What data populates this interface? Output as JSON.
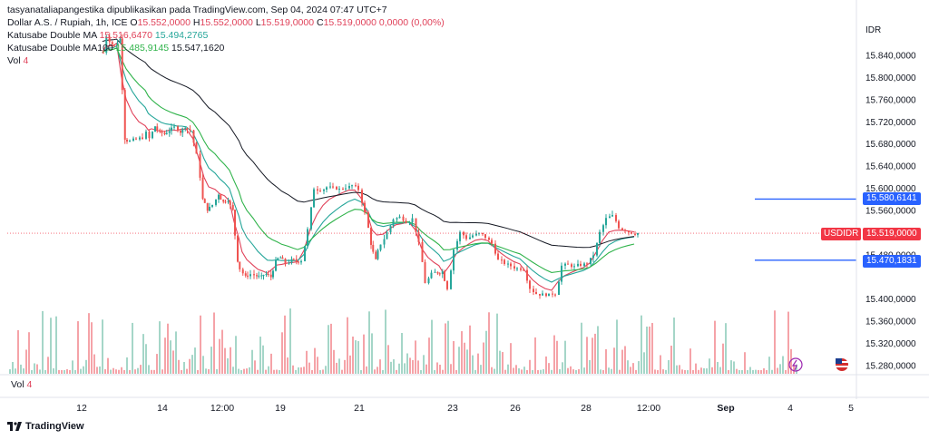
{
  "header": {
    "author_line": "tasyanataliapangestika dipublikasikan pada TradingView.com, Sep 04, 2024 07:47 UTC+7",
    "symbol_desc": "Dollar A.S. / Rupiah, 1h, ICE",
    "ohlc": {
      "o_label": "O",
      "o_value": "15.552,0000",
      "h_label": "H",
      "h_value": "15.552,0000",
      "l_label": "L",
      "l_value": "15.519,0000",
      "c_label": "C",
      "c_value": "15.519,0000",
      "change": "0,0000 (0,00%)"
    },
    "ma_double": {
      "label": "Katusabe Double MA",
      "v1": "15.516,6470",
      "v2": "15.494,2765"
    },
    "ma100": {
      "label": "Katusabe Double MA100",
      "v1": "15.485,9145",
      "v2": "15.547,1620"
    },
    "vol": {
      "label": "Vol",
      "value": "4"
    }
  },
  "vol_pane": {
    "label": "Vol",
    "value": "4"
  },
  "brand": {
    "name": "TradingView"
  },
  "price_axis": {
    "currency": "IDR",
    "ticks": [
      "15.840,0000",
      "15.800,0000",
      "15.760,0000",
      "15.720,0000",
      "15.680,0000",
      "15.640,0000",
      "15.600,0000",
      "15.560,0000",
      "15.480,0000",
      "15.400,0000",
      "15.360,0000",
      "15.320,0000",
      "15.280,0000"
    ],
    "tag_upper": "15.580,6141",
    "tag_last": "15.519,0000",
    "tag_lower": "15.470,1831",
    "symbol_tag": "USDIDR"
  },
  "time_axis": {
    "labels": [
      "12",
      "14",
      "12:00",
      "19",
      "21",
      "23",
      "26",
      "28",
      "12:00",
      "Sep",
      "4",
      "5"
    ]
  },
  "colors": {
    "up": "#26a69a",
    "down": "#ef5350",
    "ma_fast": "#e0425a",
    "ma_slow": "#26a69a",
    "ma100_fast": "#2fb34a",
    "ma100_slow": "#131722",
    "line_blue": "#2962ff",
    "vol_up": "#a5d6c8",
    "vol_down": "#f5a3a8"
  },
  "chart_data": {
    "type": "candlestick",
    "interval": "1h",
    "y_ticks": [
      15840,
      15800,
      15760,
      15720,
      15680,
      15640,
      15600,
      15560,
      15480,
      15400,
      15360,
      15320,
      15280
    ],
    "x_labels": [
      "12",
      "14",
      "12:00",
      "19",
      "21",
      "23",
      "26",
      "28",
      "12:00",
      "Sep",
      "4",
      "5"
    ],
    "horizontal_lines": [
      15580.6141,
      15470.1831
    ],
    "last_price": 15519,
    "price_path": [
      [
        0.13,
        15845
      ],
      [
        0.15,
        15875
      ],
      [
        0.17,
        15860
      ],
      [
        0.2,
        15858
      ],
      [
        0.22,
        15870
      ],
      [
        0.25,
        15690
      ],
      [
        0.28,
        15685
      ],
      [
        0.32,
        15688
      ],
      [
        0.36,
        15692
      ],
      [
        0.4,
        15700
      ],
      [
        0.42,
        15690
      ],
      [
        0.44,
        15712
      ],
      [
        0.47,
        15700
      ],
      [
        0.5,
        15698
      ],
      [
        0.53,
        15705
      ],
      [
        0.56,
        15710
      ],
      [
        0.6,
        15702
      ],
      [
        0.63,
        15712
      ],
      [
        0.66,
        15705
      ],
      [
        0.7,
        15660
      ],
      [
        0.74,
        15580
      ],
      [
        0.77,
        15562
      ],
      [
        0.8,
        15570
      ],
      [
        0.84,
        15590
      ],
      [
        0.87,
        15575
      ],
      [
        0.9,
        15580
      ],
      [
        0.93,
        15560
      ],
      [
        0.96,
        15470
      ],
      [
        0.99,
        15455
      ],
      [
        1.01,
        15440
      ],
      [
        1.04,
        15445
      ],
      [
        1.08,
        15442
      ],
      [
        1.11,
        15440
      ],
      [
        1.14,
        15445
      ],
      [
        1.17,
        15440
      ],
      [
        1.2,
        15468
      ],
      [
        1.23,
        15475
      ],
      [
        1.26,
        15465
      ],
      [
        1.3,
        15470
      ],
      [
        1.33,
        15468
      ],
      [
        1.36,
        15470
      ],
      [
        1.4,
        15525
      ],
      [
        1.44,
        15600
      ],
      [
        1.48,
        15598
      ],
      [
        1.52,
        15602
      ],
      [
        1.56,
        15600
      ],
      [
        1.6,
        15598
      ],
      [
        1.64,
        15602
      ],
      [
        1.68,
        15605
      ],
      [
        1.72,
        15598
      ],
      [
        1.76,
        15555
      ],
      [
        1.8,
        15500
      ],
      [
        1.83,
        15470
      ],
      [
        1.86,
        15500
      ],
      [
        1.9,
        15520
      ],
      [
        1.94,
        15545
      ],
      [
        1.98,
        15548
      ],
      [
        2.02,
        15540
      ],
      [
        2.06,
        15545
      ],
      [
        2.1,
        15500
      ],
      [
        2.14,
        15430
      ],
      [
        2.18,
        15445
      ],
      [
        2.22,
        15448
      ],
      [
        2.25,
        15450
      ],
      [
        2.28,
        15420
      ],
      [
        2.32,
        15490
      ],
      [
        2.36,
        15520
      ],
      [
        2.4,
        15510
      ],
      [
        2.44,
        15515
      ],
      [
        2.48,
        15518
      ],
      [
        2.52,
        15512
      ],
      [
        2.56,
        15500
      ],
      [
        2.6,
        15470
      ],
      [
        2.64,
        15465
      ],
      [
        2.68,
        15460
      ],
      [
        2.72,
        15455
      ],
      [
        2.76,
        15455
      ],
      [
        2.8,
        15420
      ],
      [
        2.84,
        15410
      ],
      [
        2.88,
        15408
      ],
      [
        2.92,
        15407
      ],
      [
        2.96,
        15410
      ],
      [
        3.0,
        15460
      ],
      [
        3.04,
        15462
      ],
      [
        3.08,
        15458
      ],
      [
        3.12,
        15462
      ],
      [
        3.16,
        15465
      ],
      [
        3.2,
        15480
      ],
      [
        3.24,
        15520
      ],
      [
        3.28,
        15545
      ],
      [
        3.32,
        15550
      ],
      [
        3.36,
        15530
      ],
      [
        3.4,
        15525
      ],
      [
        3.44,
        15520
      ],
      [
        3.48,
        15519
      ]
    ]
  }
}
